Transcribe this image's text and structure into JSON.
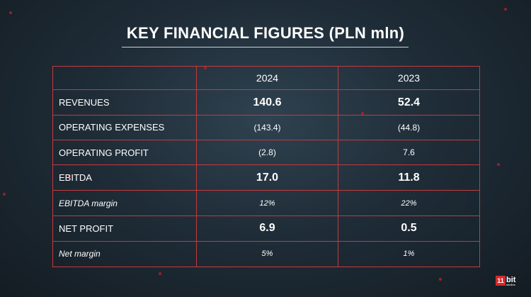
{
  "title": "KEY FINANCIAL FIGURES (PLN mln)",
  "table": {
    "columns": [
      "",
      "2024",
      "2023"
    ],
    "rows": [
      {
        "label": "REVENUES",
        "v2024": "140.6",
        "v2023": "52.4",
        "style": "bold"
      },
      {
        "label": "OPERATING EXPENSES",
        "v2024": "(143.4)",
        "v2023": "(44.8)",
        "style": "normal"
      },
      {
        "label": "OPERATING PROFIT",
        "v2024": "(2.8)",
        "v2023": "7.6",
        "style": "normal"
      },
      {
        "label": "EBITDA",
        "v2024": "17.0",
        "v2023": "11.8",
        "style": "bold"
      },
      {
        "label": "EBITDA margin",
        "v2024": "12%",
        "v2023": "22%",
        "style": "italic"
      },
      {
        "label": "NET PROFIT",
        "v2024": "6.9",
        "v2023": "0.5",
        "style": "bold"
      },
      {
        "label": "Net margin",
        "v2024": "5%",
        "v2023": "1%",
        "style": "italic"
      }
    ]
  },
  "logo": {
    "badge": "11",
    "name": "bit",
    "sub": "studios"
  },
  "colors": {
    "grid": "#c43a3d",
    "accent": "#d42a2a",
    "background": "#1f2d38"
  }
}
